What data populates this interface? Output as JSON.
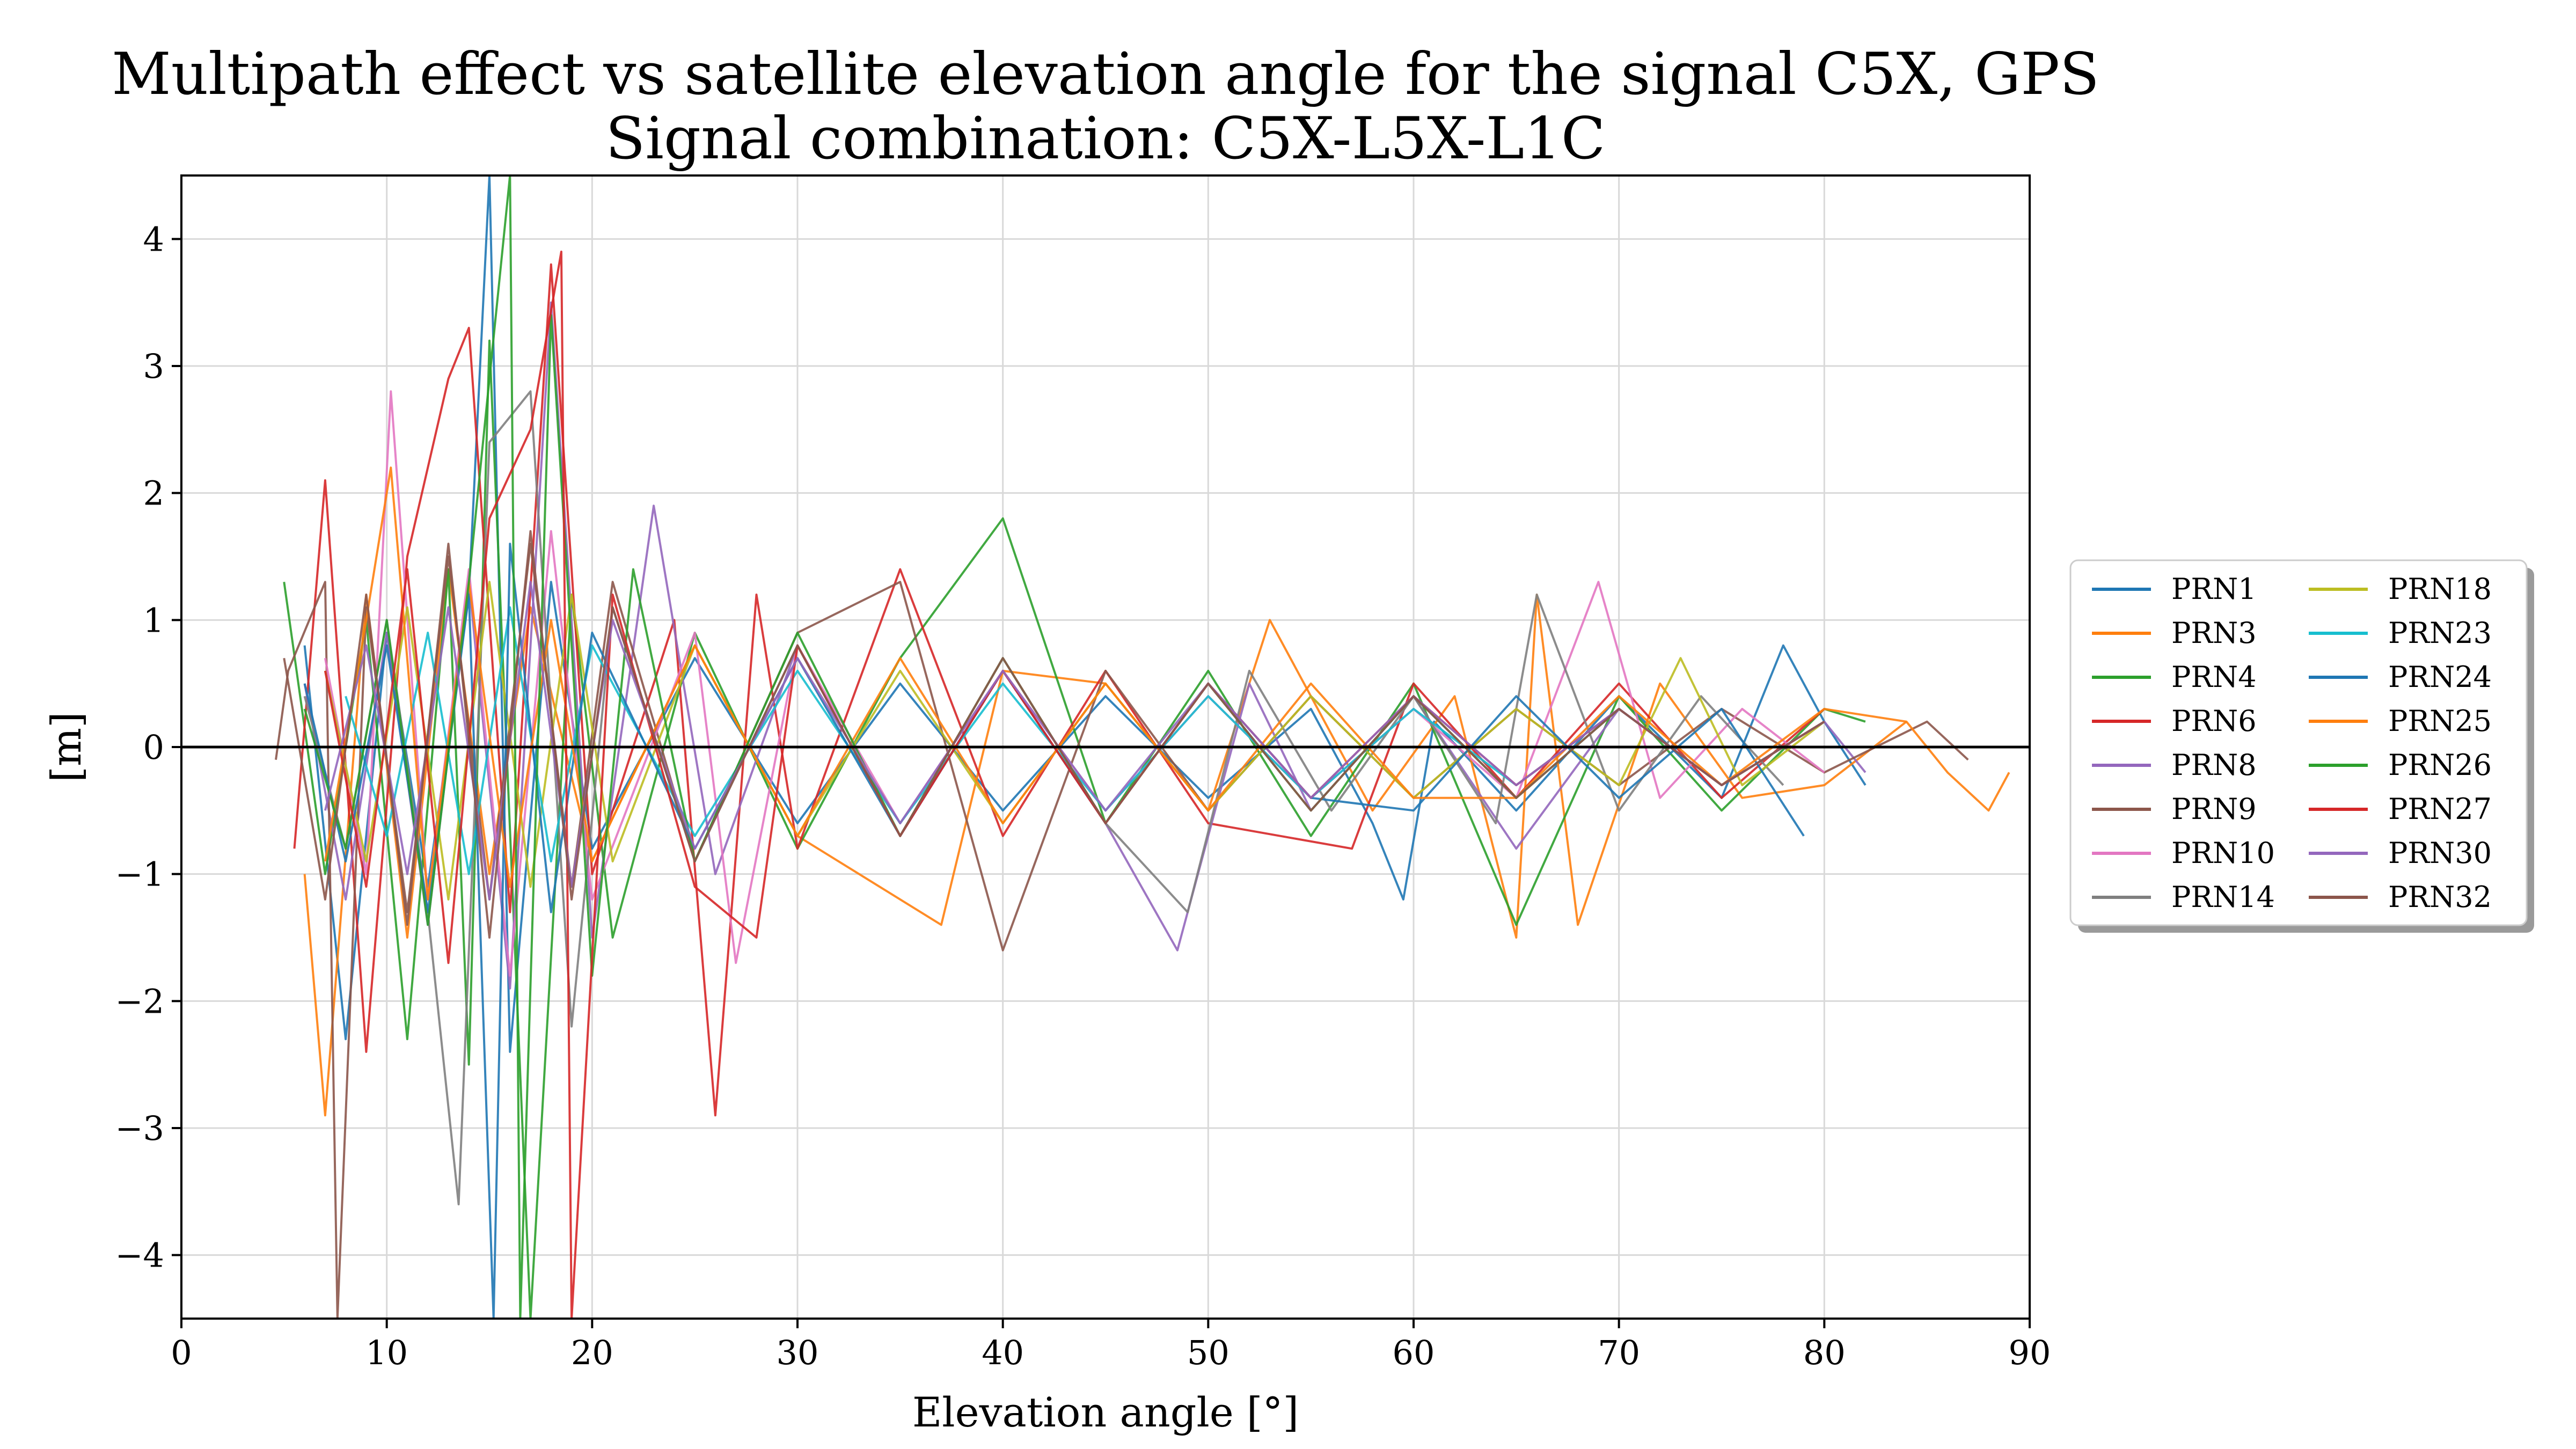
{
  "chart_data": {
    "type": "line",
    "title": "Multipath effect vs satellite elevation angle for the signal C5X, GPS",
    "subtitle": "Signal combination: C5X-L5X-L1C",
    "xlabel": "Elevation angle [°]",
    "ylabel": "[m]",
    "xlim": [
      0,
      90
    ],
    "ylim": [
      -4.5,
      4.5
    ],
    "xticks": [
      0,
      10,
      20,
      30,
      40,
      50,
      60,
      70,
      80,
      90
    ],
    "yticks": [
      -4,
      -3,
      -2,
      -1,
      0,
      1,
      2,
      3,
      4
    ],
    "ytick_labels": [
      "−4",
      "−3",
      "−2",
      "−1",
      "0",
      "1",
      "2",
      "3",
      "4"
    ],
    "grid": true,
    "zero_line": true,
    "legend": {
      "position": "right-outside",
      "columns": 2,
      "shadow": true
    },
    "series": [
      {
        "name": "PRN1",
        "color": "#1f77b4",
        "x": [
          6,
          8,
          10,
          12,
          14,
          15,
          16,
          18,
          20,
          25,
          30,
          35,
          40,
          45,
          50,
          55,
          58,
          59.5,
          61,
          65,
          70,
          75,
          78,
          80,
          82
        ],
        "y": [
          0.8,
          -2.3,
          0.9,
          -1.1,
          1.2,
          4.5,
          -2.4,
          1.3,
          -0.8,
          0.7,
          -0.6,
          0.5,
          -0.5,
          0.4,
          -0.4,
          0.3,
          -0.6,
          -1.2,
          0.2,
          -0.5,
          0.4,
          -0.4,
          0.8,
          0.2,
          -0.3
        ]
      },
      {
        "name": "PRN3",
        "color": "#ff7f0e",
        "x": [
          6,
          7,
          9,
          11,
          13,
          15,
          17,
          20,
          25,
          30,
          37,
          40,
          45,
          50,
          53,
          58,
          62,
          65,
          66,
          68,
          72,
          76,
          80,
          84
        ],
        "y": [
          -1.0,
          -2.9,
          1.2,
          -1.5,
          1.4,
          -1.0,
          1.1,
          -0.9,
          0.8,
          -0.7,
          -1.4,
          0.6,
          0.5,
          -0.5,
          1.0,
          -0.5,
          0.4,
          -1.5,
          1.2,
          -1.4,
          0.5,
          -0.4,
          -0.3,
          0.2
        ]
      },
      {
        "name": "PRN4",
        "color": "#2ca02c",
        "x": [
          5,
          7,
          9,
          11,
          13,
          14,
          15,
          17,
          19,
          21,
          25,
          30,
          35,
          40,
          45,
          50,
          55,
          60,
          65,
          70,
          75,
          80,
          82
        ],
        "y": [
          1.3,
          -1.0,
          1.0,
          -2.3,
          1.4,
          -2.5,
          3.2,
          -4.5,
          1.2,
          -1.5,
          0.9,
          -0.8,
          0.7,
          1.8,
          -0.6,
          0.6,
          -0.7,
          0.5,
          -1.4,
          0.4,
          -0.5,
          0.3,
          0.2
        ]
      },
      {
        "name": "PRN6",
        "color": "#d62728",
        "x": [
          5.5,
          7,
          9,
          11,
          13,
          14,
          16,
          18,
          20,
          24,
          26,
          28,
          30,
          35,
          40,
          45,
          50,
          57,
          60,
          65,
          70,
          75,
          80
        ],
        "y": [
          -0.8,
          2.1,
          -2.4,
          1.5,
          2.9,
          3.3,
          -1.3,
          3.8,
          -1.0,
          1.0,
          -2.9,
          1.2,
          -0.8,
          1.4,
          -0.7,
          0.6,
          -0.6,
          -0.8,
          0.5,
          -0.4,
          0.5,
          -0.4,
          0.3
        ]
      },
      {
        "name": "PRN8",
        "color": "#9467bd",
        "x": [
          6,
          8,
          10,
          12,
          14,
          16,
          18,
          20,
          23,
          26,
          30,
          35,
          40,
          45,
          48.5,
          52,
          55,
          60,
          65,
          70,
          75,
          80,
          82
        ],
        "y": [
          0.5,
          -1.2,
          0.9,
          -1.4,
          1.3,
          -1.9,
          3.5,
          -1.5,
          1.9,
          -1.0,
          0.8,
          -0.7,
          0.6,
          -0.6,
          -1.6,
          0.5,
          -0.5,
          0.4,
          -0.8,
          0.3,
          -0.3,
          0.2,
          -0.2
        ]
      },
      {
        "name": "PRN9",
        "color": "#8c564b",
        "x": [
          4.6,
          5.2,
          7,
          7.6,
          9,
          11,
          13,
          15,
          17,
          19,
          21,
          25,
          30,
          35,
          40,
          45,
          50,
          55,
          60,
          65,
          70,
          75,
          80,
          85,
          87
        ],
        "y": [
          -0.1,
          0.6,
          1.3,
          -4.5,
          1.1,
          -1.3,
          1.5,
          -1.2,
          1.6,
          -1.1,
          1.3,
          -0.9,
          0.9,
          1.3,
          -1.6,
          0.6,
          -0.5,
          0.4,
          -0.4,
          0.3,
          -0.3,
          0.3,
          -0.2,
          0.2,
          -0.1
        ]
      },
      {
        "name": "PRN10",
        "color": "#e377c2",
        "x": [
          7,
          9,
          10.2,
          12,
          14,
          16,
          18,
          20,
          25,
          27,
          30,
          35,
          40,
          45,
          50,
          55,
          60,
          65,
          69,
          72,
          76,
          80
        ],
        "y": [
          0.7,
          -1.0,
          2.8,
          -1.2,
          1.4,
          -1.8,
          1.7,
          -1.2,
          0.9,
          -1.7,
          0.8,
          -0.6,
          0.6,
          -0.5,
          0.4,
          -0.4,
          0.3,
          -0.4,
          1.3,
          -0.4,
          0.3,
          -0.2
        ]
      },
      {
        "name": "PRN14",
        "color": "#7f7f7f",
        "x": [
          6,
          8,
          10,
          12,
          13.5,
          15,
          17,
          19,
          21,
          25,
          30,
          35,
          40,
          45,
          49,
          52,
          56,
          60,
          64,
          66,
          70,
          74,
          78
        ],
        "y": [
          0.4,
          -0.8,
          1.0,
          -1.3,
          -3.6,
          2.4,
          2.8,
          -2.2,
          1.1,
          -0.9,
          0.8,
          -0.7,
          0.7,
          -0.6,
          -1.3,
          0.6,
          -0.5,
          0.4,
          -0.6,
          1.2,
          -0.5,
          0.4,
          -0.3
        ]
      },
      {
        "name": "PRN18",
        "color": "#bcbd22",
        "x": [
          7,
          9,
          11,
          13,
          15,
          17,
          19,
          21,
          25,
          30,
          35,
          40,
          45,
          50,
          55,
          60,
          65,
          70,
          73,
          76,
          80
        ],
        "y": [
          0.6,
          -0.9,
          1.1,
          -1.2,
          1.3,
          -1.1,
          1.2,
          -0.9,
          0.8,
          -0.7,
          0.6,
          -0.6,
          0.5,
          -0.5,
          0.4,
          -0.4,
          0.3,
          -0.3,
          0.7,
          -0.3,
          0.2
        ]
      },
      {
        "name": "PRN23",
        "color": "#17becf",
        "x": [
          8,
          10,
          12,
          14,
          16,
          18,
          20,
          25,
          30,
          35,
          40,
          45,
          50,
          55,
          60,
          65,
          70,
          75,
          80
        ],
        "y": [
          0.4,
          -0.7,
          0.9,
          -1.0,
          1.1,
          -0.9,
          0.8,
          -0.7,
          0.6,
          -0.6,
          0.5,
          -0.5,
          0.4,
          -0.4,
          0.3,
          -0.3,
          0.3,
          -0.3,
          0.2
        ]
      },
      {
        "name": "PRN24",
        "color": "#1f77b4",
        "x": [
          6,
          8,
          10,
          12,
          14,
          15.2,
          16,
          18,
          20,
          25,
          30,
          35,
          40,
          45,
          50,
          55,
          60,
          65,
          70,
          75,
          79
        ],
        "y": [
          0.5,
          -0.9,
          0.8,
          -1.3,
          1.2,
          -4.5,
          1.6,
          -1.3,
          0.9,
          -0.8,
          0.7,
          -0.7,
          0.6,
          -0.6,
          0.5,
          -0.4,
          -0.5,
          0.4,
          -0.4,
          0.3,
          -0.7
        ]
      },
      {
        "name": "PRN25",
        "color": "#ff7f0e",
        "x": [
          7,
          9,
          10.2,
          12,
          14,
          16,
          18,
          20,
          25,
          30,
          35,
          40,
          45,
          50,
          55,
          60,
          65,
          70,
          75,
          80,
          84,
          86,
          88,
          89
        ],
        "y": [
          -0.9,
          1.0,
          2.2,
          -1.2,
          1.3,
          -1.1,
          1.0,
          -0.9,
          0.8,
          -0.7,
          0.7,
          -0.6,
          0.5,
          -0.5,
          0.5,
          -0.4,
          -0.4,
          0.4,
          -0.3,
          0.3,
          0.2,
          -0.2,
          -0.5,
          -0.2
        ]
      },
      {
        "name": "PRN26",
        "color": "#2ca02c",
        "x": [
          6,
          8,
          10,
          12,
          14,
          16,
          16.5,
          18,
          20,
          22,
          25,
          30,
          35,
          40,
          45,
          50,
          55,
          60,
          65,
          70,
          75,
          80
        ],
        "y": [
          0.3,
          -0.8,
          1.0,
          -1.4,
          1.3,
          4.5,
          -4.5,
          3.4,
          -1.8,
          1.4,
          -0.9,
          0.9,
          -0.7,
          0.7,
          -0.6,
          0.5,
          -0.5,
          0.4,
          -0.4,
          0.3,
          -0.3,
          0.2
        ]
      },
      {
        "name": "PRN27",
        "color": "#d62728",
        "x": [
          7,
          9,
          11,
          13,
          15,
          17,
          18.5,
          19,
          21,
          25,
          28,
          30,
          35,
          40,
          45,
          50,
          55,
          60,
          65,
          70,
          75,
          80
        ],
        "y": [
          0.6,
          -1.1,
          1.4,
          -1.7,
          1.8,
          2.5,
          3.9,
          -4.5,
          1.2,
          -1.1,
          -1.5,
          0.8,
          -0.7,
          0.6,
          -0.6,
          0.5,
          -0.4,
          0.4,
          -0.3,
          0.3,
          -0.3,
          0.2
        ]
      },
      {
        "name": "PRN30",
        "color": "#9467bd",
        "x": [
          7,
          9,
          11,
          13,
          15,
          17,
          19,
          21,
          25,
          30,
          35,
          40,
          45,
          50,
          55,
          60,
          65,
          70,
          75,
          80
        ],
        "y": [
          -0.5,
          0.8,
          -1.0,
          1.1,
          -1.2,
          1.3,
          -1.1,
          1.0,
          -0.8,
          0.7,
          -0.6,
          0.6,
          -0.5,
          0.5,
          -0.4,
          0.4,
          -0.3,
          0.3,
          -0.3,
          0.2
        ]
      },
      {
        "name": "PRN32",
        "color": "#8c564b",
        "x": [
          5,
          7,
          9,
          11,
          13,
          15,
          17,
          19,
          21,
          25,
          30,
          35,
          40,
          45,
          50,
          55,
          60,
          65,
          70,
          75,
          80
        ],
        "y": [
          0.7,
          -1.2,
          1.2,
          -1.4,
          1.6,
          -1.5,
          1.7,
          -1.2,
          1.1,
          -0.9,
          0.8,
          -0.7,
          0.7,
          -0.6,
          0.5,
          -0.5,
          0.4,
          -0.4,
          0.3,
          -0.3,
          0.2
        ]
      }
    ]
  }
}
